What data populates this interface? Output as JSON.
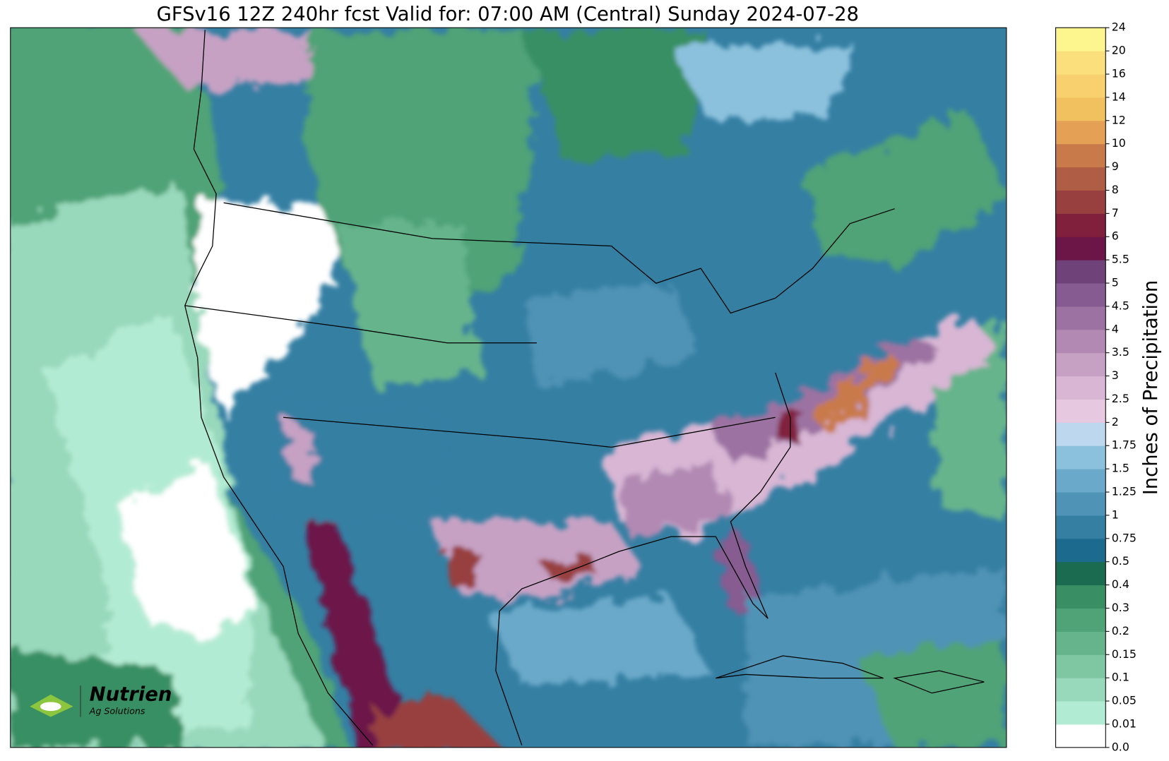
{
  "title": "GFSv16 12Z 240hr fcst Valid for: 07:00 AM (Central) Sunday 2024-07-28",
  "logo": {
    "name": "Nutrien",
    "tagline": "Ag Solutions"
  },
  "colorbar": {
    "label": "Inches of Precipitation",
    "levels": [
      {
        "value": 0,
        "label": "0.0"
      },
      0.01,
      0.05,
      0.1,
      0.15,
      0.2,
      0.3,
      0.4,
      0.5,
      0.75,
      1,
      1.25,
      1.5,
      1.75,
      2,
      2.5,
      3,
      3.5,
      4,
      4.5,
      5,
      5.5,
      6,
      7,
      8,
      9,
      10,
      12,
      14,
      16,
      20,
      24
    ],
    "colors": [
      "#ffffff",
      "#b2ebd3",
      "#98d8bb",
      "#7fc6a3",
      "#66b48c",
      "#4fa377",
      "#398f63",
      "#1a6b50",
      "#1d6a8f",
      "#357fa3",
      "#4f93b6",
      "#6aa9c9",
      "#8bc1dd",
      "#bcd7ee",
      "#e6c8e1",
      "#d8b6d4",
      "#c6a1c4",
      "#b189b3",
      "#9c72a2",
      "#865b91",
      "#6f4379",
      "#6c1648",
      "#80203c",
      "#98403f",
      "#b05d45",
      "#c97a4b",
      "#e4a055",
      "#f2c15f",
      "#f8d06d",
      "#fbdf7c",
      "#fdf58e"
    ]
  }
}
